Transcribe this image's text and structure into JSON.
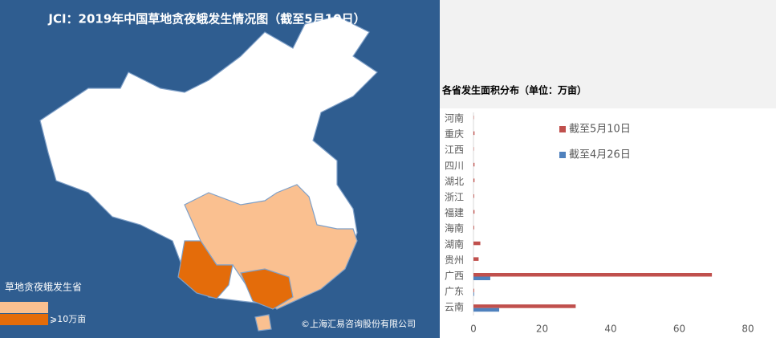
{
  "map": {
    "title": "JCI：2019年中国草地贪夜蛾发生情况图（截至5月10日）",
    "legend_title": "草地贪夜蛾发生省",
    "legend_high": "⩾10万亩",
    "credit": "©上海汇易咨询股份有限公司"
  },
  "chart_data": {
    "type": "hbar",
    "title": "各省发生面积分布（单位：万亩）",
    "categories": [
      "河南",
      "重庆",
      "江西",
      "四川",
      "湖北",
      "浙江",
      "福建",
      "海南",
      "湖南",
      "贵州",
      "广西",
      "广东",
      "云南"
    ],
    "series": [
      {
        "name": "截至5月10日",
        "color": "#c0504d",
        "values": [
          0.1,
          0.3,
          0.1,
          0.3,
          0.3,
          0.2,
          0.3,
          0.2,
          2,
          1.5,
          69.5,
          0.2,
          29.8
        ]
      },
      {
        "name": "截至4月26日",
        "color": "#4f81bd",
        "values": [
          0,
          0,
          0,
          0,
          0,
          0,
          0,
          0,
          0,
          0,
          4.9,
          0.2,
          7.5
        ]
      }
    ],
    "xlim": [
      0,
      80
    ],
    "xticks": [
      0,
      20,
      40,
      60,
      80
    ]
  }
}
